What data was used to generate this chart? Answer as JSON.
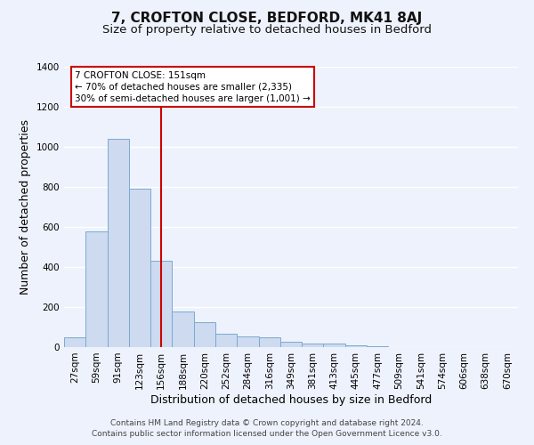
{
  "title": "7, CROFTON CLOSE, BEDFORD, MK41 8AJ",
  "subtitle": "Size of property relative to detached houses in Bedford",
  "xlabel": "Distribution of detached houses by size in Bedford",
  "ylabel": "Number of detached properties",
  "bar_labels": [
    "27sqm",
    "59sqm",
    "91sqm",
    "123sqm",
    "156sqm",
    "188sqm",
    "220sqm",
    "252sqm",
    "284sqm",
    "316sqm",
    "349sqm",
    "381sqm",
    "413sqm",
    "445sqm",
    "477sqm",
    "509sqm",
    "541sqm",
    "574sqm",
    "606sqm",
    "638sqm",
    "670sqm"
  ],
  "bar_values": [
    50,
    580,
    1040,
    790,
    430,
    180,
    125,
    65,
    55,
    50,
    25,
    20,
    18,
    8,
    5,
    0,
    0,
    0,
    0,
    0,
    0
  ],
  "bar_color": "#cddaf0",
  "bar_edge_color": "#7aaad0",
  "vline_x_index": 4,
  "vline_color": "#cc0000",
  "ylim": [
    0,
    1400
  ],
  "yticks": [
    0,
    200,
    400,
    600,
    800,
    1000,
    1200,
    1400
  ],
  "annotation_title": "7 CROFTON CLOSE: 151sqm",
  "annotation_line1": "← 70% of detached houses are smaller (2,335)",
  "annotation_line2": "30% of semi-detached houses are larger (1,001) →",
  "annotation_box_color": "#ffffff",
  "annotation_box_edge": "#cc0000",
  "footer1": "Contains HM Land Registry data © Crown copyright and database right 2024.",
  "footer2": "Contains public sector information licensed under the Open Government Licence v3.0.",
  "background_color": "#eef2fc",
  "grid_color": "#ffffff",
  "title_fontsize": 11,
  "subtitle_fontsize": 9.5,
  "axis_label_fontsize": 9,
  "tick_fontsize": 7.5,
  "footer_fontsize": 6.5
}
